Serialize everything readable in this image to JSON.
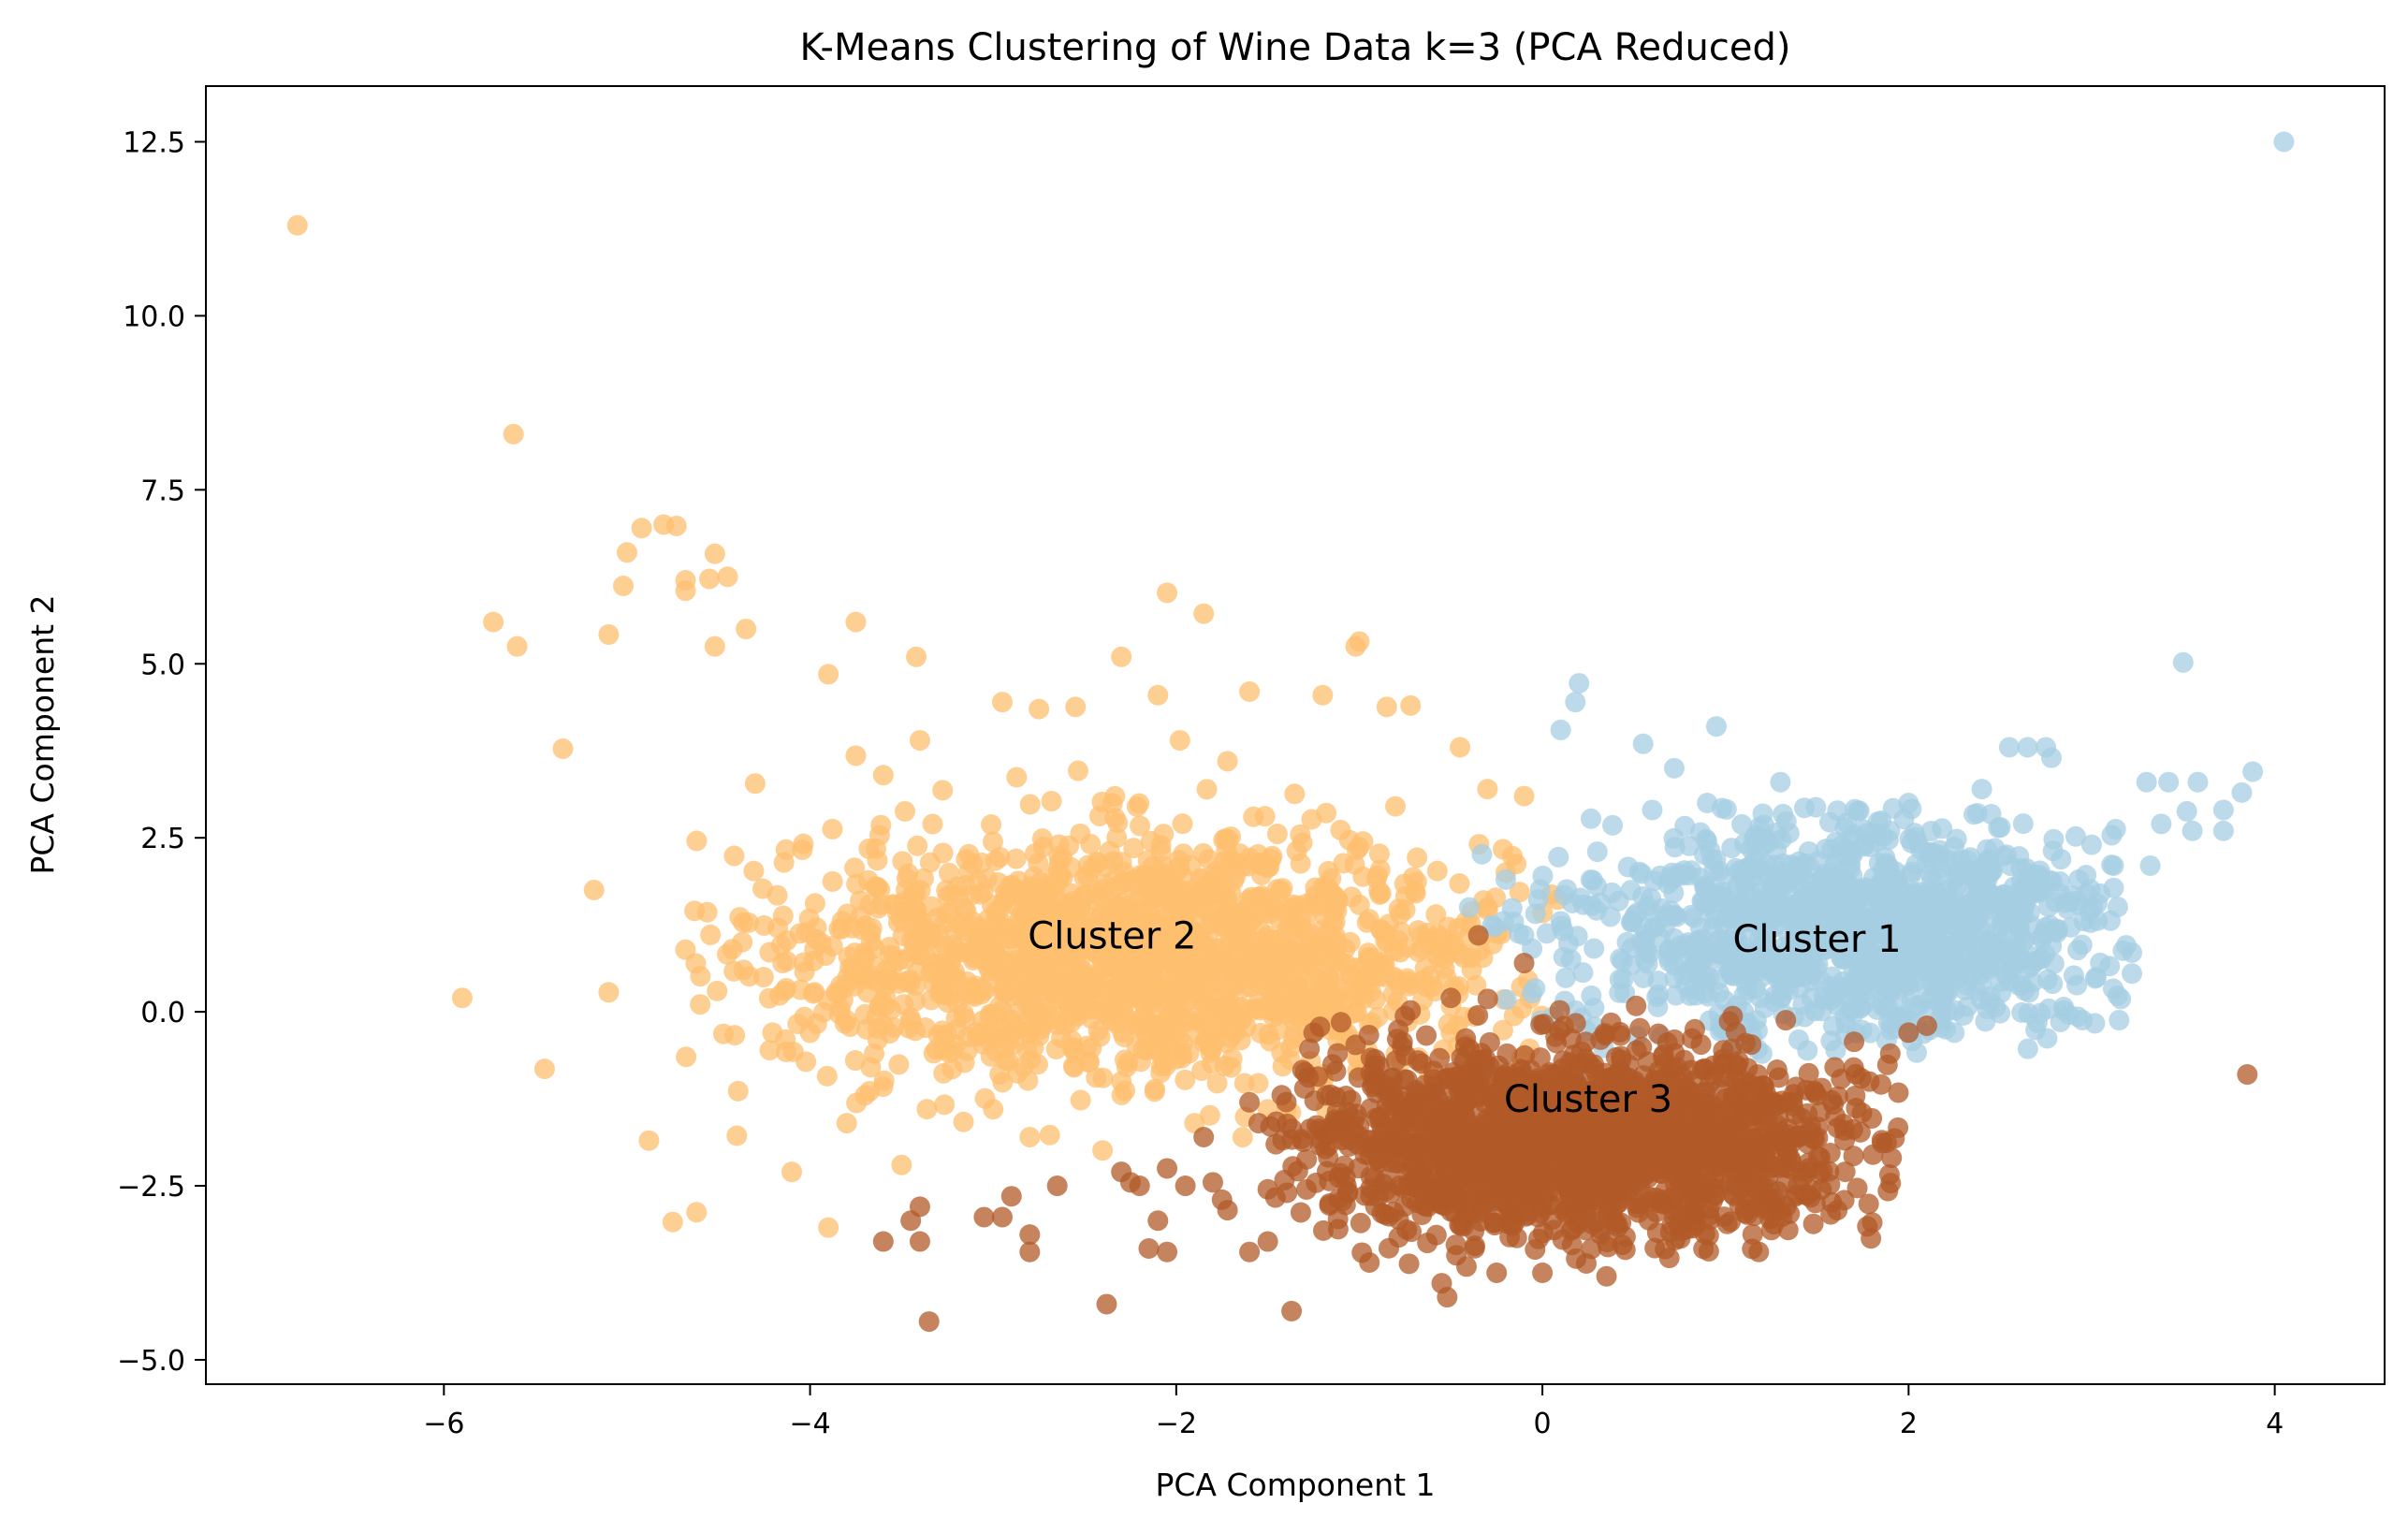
{
  "chart_data": {
    "type": "scatter",
    "title": "K-Means Clustering of Wine Data k=3 (PCA Reduced)",
    "xlabel": "PCA Component 1",
    "ylabel": "PCA Component 2",
    "xlim": [
      -7.3,
      4.6
    ],
    "ylim": [
      -5.35,
      13.3
    ],
    "x_ticks": [
      -6,
      -4,
      -2,
      0,
      2,
      4
    ],
    "x_tick_labels": [
      "−6",
      "−4",
      "−2",
      "0",
      "2",
      "4"
    ],
    "y_ticks": [
      -5.0,
      -2.5,
      0.0,
      2.5,
      5.0,
      7.5,
      10.0,
      12.5
    ],
    "y_tick_labels": [
      "−5.0",
      "−2.5",
      "0.0",
      "2.5",
      "5.0",
      "7.5",
      "10.0",
      "12.5"
    ],
    "grid": false,
    "annotations": [
      {
        "text": "Cluster 2",
        "x": -2.35,
        "y": 1.1
      },
      {
        "text": "Cluster 1",
        "x": 1.5,
        "y": 1.05
      },
      {
        "text": "Cluster 3",
        "x": 0.25,
        "y": -1.25
      }
    ],
    "series": [
      {
        "color": "#fdbf6f",
        "points": [
          [
            -6.8,
            11.3
          ],
          [
            -5.62,
            8.3
          ],
          [
            -4.92,
            6.95
          ],
          [
            -4.8,
            7.0
          ],
          [
            -4.73,
            6.98
          ],
          [
            -5.0,
            6.6
          ],
          [
            -4.52,
            6.58
          ],
          [
            -4.68,
            6.2
          ],
          [
            -4.55,
            6.22
          ],
          [
            -4.45,
            6.25
          ],
          [
            -5.02,
            6.12
          ],
          [
            -4.68,
            6.05
          ],
          [
            -5.73,
            5.6
          ],
          [
            -5.6,
            5.25
          ],
          [
            -5.1,
            5.42
          ],
          [
            -4.35,
            5.5
          ],
          [
            -4.52,
            5.25
          ],
          [
            -3.75,
            5.6
          ],
          [
            -3.9,
            4.85
          ],
          [
            -3.42,
            5.1
          ],
          [
            -5.35,
            3.78
          ],
          [
            -4.3,
            3.28
          ],
          [
            -5.18,
            1.75
          ],
          [
            -5.1,
            0.28
          ],
          [
            -5.9,
            0.2
          ],
          [
            -5.45,
            -0.82
          ],
          [
            -4.75,
            -3.02
          ],
          [
            -4.62,
            -2.88
          ],
          [
            -4.88,
            -1.85
          ],
          [
            -4.4,
            -1.78
          ],
          [
            -3.9,
            -3.1
          ],
          [
            -2.05,
            6.02
          ],
          [
            -1.85,
            5.72
          ],
          [
            -2.3,
            5.1
          ],
          [
            -1.02,
            5.25
          ],
          [
            -1.0,
            5.32
          ],
          [
            -2.95,
            4.45
          ],
          [
            -2.55,
            4.38
          ],
          [
            -2.1,
            4.55
          ],
          [
            -1.6,
            4.6
          ],
          [
            -1.2,
            4.55
          ],
          [
            -0.85,
            4.38
          ],
          [
            -0.45,
            3.8
          ],
          [
            -0.1,
            3.1
          ],
          [
            -0.3,
            3.2
          ],
          [
            -3.4,
            3.9
          ],
          [
            -3.6,
            3.4
          ],
          [
            -3.75,
            3.68
          ],
          [
            -1.98,
            3.9
          ],
          [
            -1.72,
            3.6
          ],
          [
            -2.75,
            4.35
          ],
          [
            -0.72,
            4.4
          ],
          [
            -4.15,
            0.7
          ],
          [
            -4.0,
            -0.3
          ],
          [
            -3.65,
            -0.6
          ],
          [
            -3.8,
            -1.6
          ],
          [
            -4.1,
            -2.3
          ],
          [
            -3.5,
            -2.2
          ],
          [
            -3.7,
            -1.2
          ],
          [
            -3.0,
            -1.4
          ],
          [
            -2.8,
            -1.8
          ],
          [
            -2.3,
            -1.0
          ],
          [
            -1.9,
            -1.6
          ],
          [
            -1.5,
            -1.4
          ],
          [
            -1.7,
            -0.8
          ],
          [
            -1.2,
            -0.9
          ],
          [
            -0.8,
            -0.6
          ],
          [
            -0.5,
            -0.3
          ],
          [
            -0.6,
            1.0
          ],
          [
            -0.3,
            1.5
          ],
          [
            -0.2,
            2.0
          ]
        ],
        "cloud": {
          "cx": -2.2,
          "cy": 0.8,
          "sx": 1.0,
          "sy": 0.85,
          "n": 1700,
          "xmin": -4.7,
          "xmax": 0.1,
          "ymin": -2.6,
          "ymax": 3.6
        }
      },
      {
        "color": "#a6cee3",
        "points": [
          [
            4.05,
            12.5
          ],
          [
            3.5,
            5.02
          ],
          [
            0.2,
            4.72
          ],
          [
            0.18,
            4.45
          ],
          [
            0.1,
            4.05
          ],
          [
            0.95,
            4.1
          ],
          [
            0.55,
            3.85
          ],
          [
            0.72,
            3.5
          ],
          [
            2.55,
            3.8
          ],
          [
            2.65,
            3.8
          ],
          [
            2.75,
            3.8
          ],
          [
            2.78,
            3.65
          ],
          [
            3.3,
            3.3
          ],
          [
            3.42,
            3.3
          ],
          [
            3.58,
            3.3
          ],
          [
            3.88,
            3.45
          ],
          [
            3.82,
            3.15
          ],
          [
            3.72,
            2.9
          ],
          [
            3.52,
            2.88
          ],
          [
            3.38,
            2.7
          ],
          [
            3.55,
            2.6
          ],
          [
            3.72,
            2.6
          ],
          [
            3.12,
            2.1
          ],
          [
            3.32,
            2.1
          ],
          [
            3.12,
            1.78
          ],
          [
            3.22,
            0.85
          ],
          [
            3.22,
            0.55
          ],
          [
            3.15,
            -0.12
          ],
          [
            2.95,
            -0.12
          ],
          [
            2.72,
            -0.02
          ],
          [
            2.5,
            -0.02
          ],
          [
            2.3,
            -0.05
          ],
          [
            2.25,
            -0.3
          ],
          [
            1.9,
            0.3
          ],
          [
            1.4,
            -0.4
          ],
          [
            1.2,
            -0.6
          ],
          [
            1.1,
            0.0
          ],
          [
            0.6,
            2.9
          ],
          [
            0.9,
            3.0
          ],
          [
            1.3,
            3.3
          ],
          [
            2.0,
            3.0
          ],
          [
            2.4,
            3.2
          ],
          [
            3.0,
            2.4
          ],
          [
            0.3,
            2.3
          ],
          [
            -0.2,
            1.9
          ],
          [
            -0.4,
            1.5
          ],
          [
            -0.1,
            1.1
          ],
          [
            0.1,
            1.3
          ]
        ],
        "cloud": {
          "cx": 1.7,
          "cy": 1.2,
          "sx": 0.75,
          "sy": 0.8,
          "n": 1200,
          "xmin": -0.35,
          "xmax": 3.2,
          "ymin": -0.6,
          "ymax": 3.0
        }
      },
      {
        "color": "#b15928",
        "points": [
          [
            3.85,
            -0.9
          ],
          [
            -3.35,
            -4.45
          ],
          [
            -2.38,
            -4.2
          ],
          [
            -1.37,
            -4.3
          ],
          [
            -0.55,
            -3.9
          ],
          [
            -0.52,
            -4.1
          ],
          [
            -0.25,
            -3.75
          ],
          [
            0.35,
            -3.8
          ],
          [
            0.0,
            -3.75
          ],
          [
            -3.6,
            -3.3
          ],
          [
            -3.4,
            -3.3
          ],
          [
            -3.45,
            -3.0
          ],
          [
            -3.4,
            -2.8
          ],
          [
            -3.05,
            -2.95
          ],
          [
            -2.95,
            -2.95
          ],
          [
            -2.8,
            -3.2
          ],
          [
            -2.8,
            -3.45
          ],
          [
            -2.9,
            -2.65
          ],
          [
            -2.65,
            -2.5
          ],
          [
            -2.3,
            -2.3
          ],
          [
            -2.2,
            -2.5
          ],
          [
            -2.25,
            -2.45
          ],
          [
            -2.05,
            -2.25
          ],
          [
            -2.15,
            -3.4
          ],
          [
            -2.05,
            -3.45
          ],
          [
            -2.1,
            -3.0
          ],
          [
            -1.95,
            -2.5
          ],
          [
            -1.8,
            -2.45
          ],
          [
            -1.75,
            -2.7
          ],
          [
            -1.72,
            -2.85
          ],
          [
            -1.6,
            -3.45
          ],
          [
            -1.5,
            -3.3
          ],
          [
            -1.5,
            -2.55
          ],
          [
            -1.85,
            -1.8
          ],
          [
            -1.55,
            -1.6
          ],
          [
            -1.6,
            -1.3
          ],
          [
            -1.3,
            -1.1
          ],
          [
            -1.25,
            -0.3
          ],
          [
            -1.1,
            -0.15
          ],
          [
            -0.72,
            0.02
          ],
          [
            -0.5,
            0.2
          ],
          [
            -0.35,
            1.1
          ],
          [
            -0.1,
            0.7
          ],
          [
            1.88,
            -1.88
          ],
          [
            1.6,
            -1.5
          ],
          [
            1.5,
            -1.2
          ],
          [
            1.4,
            -1.8
          ],
          [
            1.25,
            -2.25
          ],
          [
            1.05,
            -2.5
          ],
          [
            0.9,
            -2.45
          ],
          [
            0.72,
            -2.95
          ],
          [
            1.7,
            -0.8
          ],
          [
            1.9,
            -0.6
          ],
          [
            2.0,
            -0.3
          ],
          [
            2.1,
            -0.2
          ]
        ],
        "cloud": {
          "cx": 0.2,
          "cy": -1.85,
          "sx": 0.75,
          "sy": 0.65,
          "n": 1900,
          "xmin": -1.5,
          "xmax": 1.95,
          "ymin": -3.7,
          "ymax": 0.4
        }
      }
    ]
  }
}
